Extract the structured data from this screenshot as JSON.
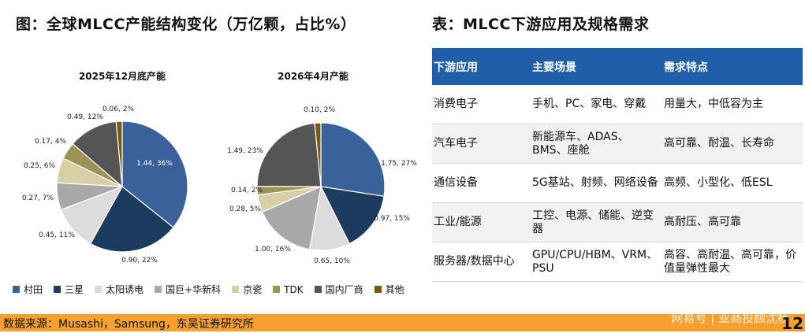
{
  "left_title": "图：全球MLCC产能结构变化（万亿颗，占比%）",
  "right_title": "表：MLCC下游应用及规格需求",
  "chart_data": [
    {
      "type": "pie",
      "title": "2025年12月底产能",
      "slices": [
        {
          "name": "村田",
          "value": 1.44,
          "label": "1.44, 36%",
          "color": "#3b6298"
        },
        {
          "name": "三星",
          "value": 0.9,
          "label": "0.90, 22%",
          "color": "#1d3a5f"
        },
        {
          "name": "太阳诱电",
          "value": 0.45,
          "label": "0.45, 11%",
          "color": "#dcdcdc"
        },
        {
          "name": "国巨+华新科",
          "value": 0.27,
          "label": "0.27, 7%",
          "color": "#a8a8a8"
        },
        {
          "name": "京瓷",
          "value": 0.25,
          "label": "0.25, 6%",
          "color": "#d8cfa6"
        },
        {
          "name": "TDK",
          "value": 0.17,
          "label": "0.17, 4%",
          "color": "#9c9357"
        },
        {
          "name": "国内厂商",
          "value": 0.49,
          "label": "0.49, 12%",
          "color": "#555555"
        },
        {
          "name": "其他",
          "value": 0.06,
          "label": "0.06, 2%",
          "color": "#7a5a10"
        }
      ]
    },
    {
      "type": "pie",
      "title": "2026年4月产能",
      "slices": [
        {
          "name": "村田",
          "value": 1.75,
          "label": "1.75, 27%",
          "color": "#3b6298"
        },
        {
          "name": "三星",
          "value": 0.97,
          "label": "0.97, 15%",
          "color": "#1d3a5f"
        },
        {
          "name": "太阳诱电",
          "value": 0.65,
          "label": "0.65, 10%",
          "color": "#dcdcdc"
        },
        {
          "name": "国巨+华新科",
          "value": 1.0,
          "label": "1.00, 16%",
          "color": "#a8a8a8"
        },
        {
          "name": "京瓷",
          "value": 0.28,
          "label": "0.28, 5%",
          "color": "#d8cfa6"
        },
        {
          "name": "TDK",
          "value": 0.14,
          "label": "0.14, 2%",
          "color": "#9c9357"
        },
        {
          "name": "国内厂商",
          "value": 1.49,
          "label": "1.49, 23%",
          "color": "#555555"
        },
        {
          "name": "其他",
          "value": 0.1,
          "label": "0.10, 2%",
          "color": "#7a5a10"
        }
      ]
    }
  ],
  "legend": [
    {
      "label": "村田",
      "color": "#3b6298"
    },
    {
      "label": "三星",
      "color": "#1d3a5f"
    },
    {
      "label": "太阳诱电",
      "color": "#dcdcdc"
    },
    {
      "label": "国巨+华新科",
      "color": "#a8a8a8"
    },
    {
      "label": "京瓷",
      "color": "#d8cfa6"
    },
    {
      "label": "TDK",
      "color": "#9c9357"
    },
    {
      "label": "国内厂商",
      "color": "#555555"
    },
    {
      "label": "其他",
      "color": "#7a5a10"
    }
  ],
  "table": {
    "headers": [
      "下游应用",
      "主要场景",
      "需求特点"
    ],
    "rows": [
      [
        "消费电子",
        "手机、PC、家电、穿戴",
        "用量大，中低容为主"
      ],
      [
        "汽车电子",
        "新能源车、ADAS、BMS、座舱",
        "高可靠、耐温、长寿命"
      ],
      [
        "通信设备",
        "5G基站、射频、网络设备",
        "高频、小型化、低ESL"
      ],
      [
        "工业/能源",
        "工控、电源、储能、逆变器",
        "高耐压、高可靠"
      ],
      [
        "服务器/数据中心",
        "GPU/CPU/HBM、VRM、PSU",
        "高容、高耐温、高可靠，价值量弹性最大"
      ]
    ]
  },
  "footer": {
    "source": "数据来源：Musashi，Samsung，东吴证券研究所",
    "watermark": "网易号 | 亚商投顾沈杨",
    "page": "12"
  }
}
